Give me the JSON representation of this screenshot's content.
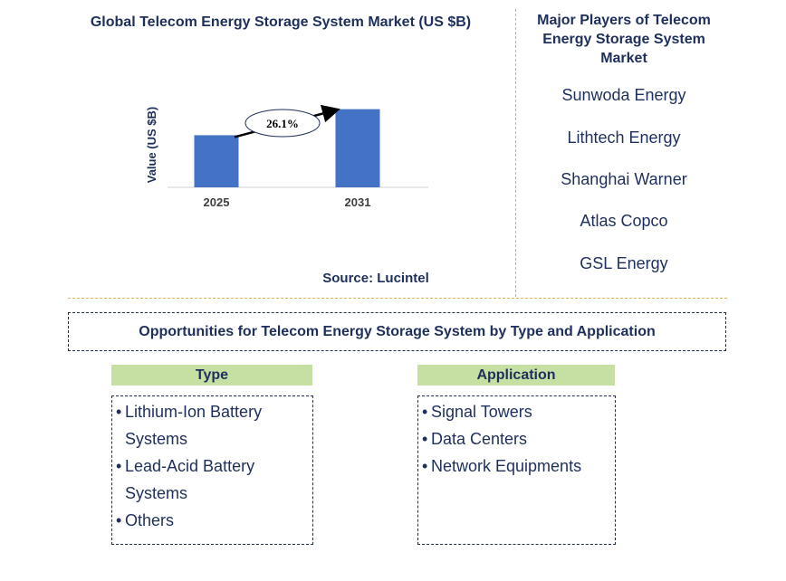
{
  "chart_data": {
    "type": "bar",
    "title": "Global Telecom Energy Storage System Market (US $B)",
    "ylabel": "Value (US $B)",
    "categories": [
      "2025",
      "2031"
    ],
    "values": [
      1,
      1.5
    ],
    "ylim": [
      0,
      1.65
    ],
    "annotation": "26.1%",
    "bar_color": "#4472c4",
    "grid": false
  },
  "source": "Source: Lucintel",
  "players": {
    "title": "Major Players of Telecom Energy Storage System Market",
    "items": [
      "Sunwoda Energy",
      "Lithtech Energy",
      "Shanghai Warner",
      "Atlas Copco",
      "GSL Energy"
    ]
  },
  "opportunities": {
    "title": "Opportunities for Telecom Energy Storage System by Type and Application",
    "type": {
      "header": "Type",
      "lines": [
        {
          "bullet": "•",
          "text": "Lithium-Ion Battery"
        },
        {
          "bullet": "",
          "text": "Systems"
        },
        {
          "bullet": "•",
          "text": "Lead-Acid Battery"
        },
        {
          "bullet": "",
          "text": "Systems"
        },
        {
          "bullet": "•",
          "text": "Others"
        }
      ]
    },
    "application": {
      "header": "Application",
      "lines": [
        {
          "bullet": "•",
          "text": "Signal Towers"
        },
        {
          "bullet": "•",
          "text": "Data Centers"
        },
        {
          "bullet": "•",
          "text": "Network Equipments"
        }
      ]
    }
  },
  "colors": {
    "text": "#1f2f5c",
    "divider": "#e2b25b",
    "header_fill": "#c6e0a4"
  }
}
